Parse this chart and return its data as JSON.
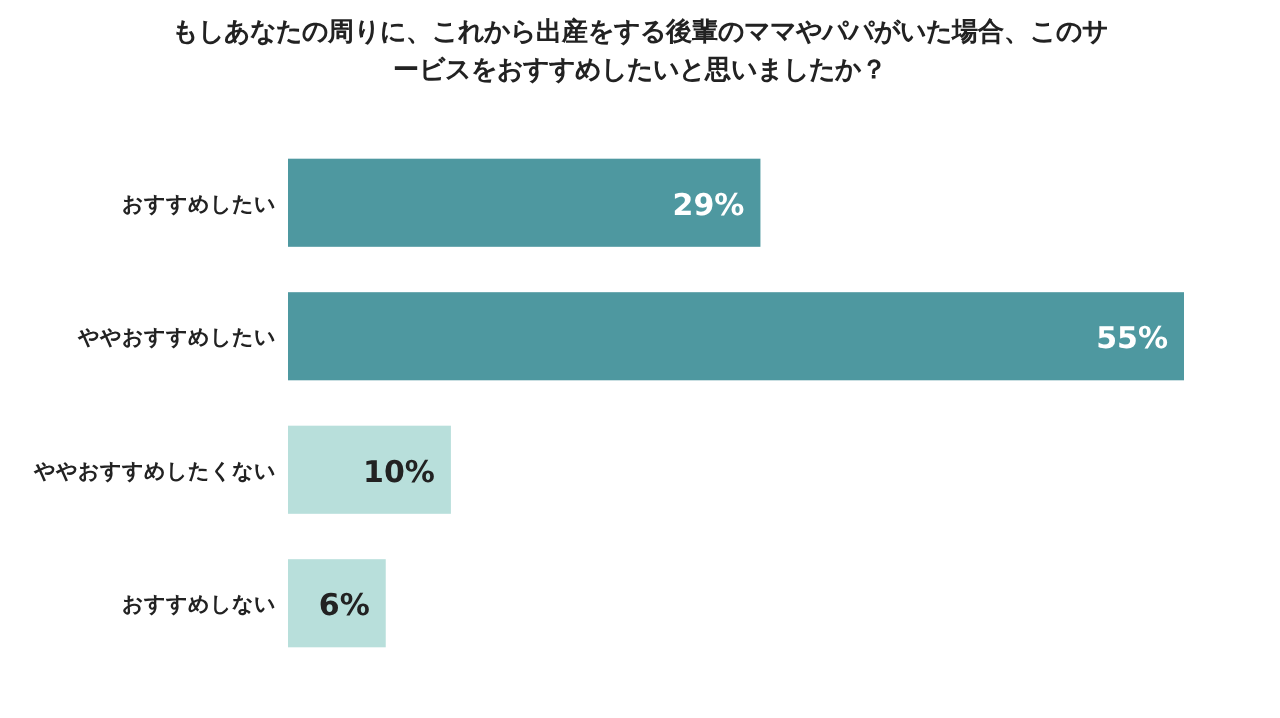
{
  "chart_data": {
    "type": "bar",
    "orientation": "horizontal",
    "title": "もしあなたの周りに、これから出産をする後輩のママやパパがいた場合、このサービスをおすすめしたいと思いましたか？",
    "categories": [
      "おすすめしたい",
      "ややおすすめしたい",
      "ややおすすめしたくない",
      "おすすめしない"
    ],
    "values": [
      29,
      55,
      10,
      6
    ],
    "colors": [
      "#4e98a0",
      "#4e98a0",
      "#b8dfdb",
      "#b8dfdb"
    ],
    "value_labels": [
      "29%",
      "55%",
      "10%",
      "6%"
    ]
  }
}
